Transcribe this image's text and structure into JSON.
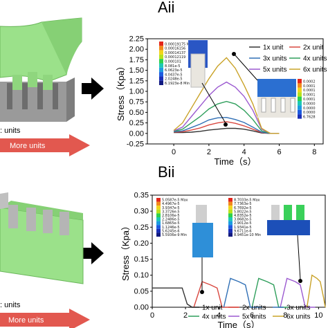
{
  "figure": {
    "panel_a_label": "Aii",
    "panel_b_label": "Bii",
    "arrow_color": "#d9534f",
    "more_units_label": "More units",
    "units_partial_label": ": units"
  },
  "colorbars": {
    "a_left": [
      "0.00019175 Max",
      "0.00016156",
      "0.00014137",
      "0.00012119",
      "0.000101",
      "8.081e-5",
      "6.0623e-5",
      "4.0437e-5",
      "2.0248e-5",
      "6.1923e-8 Min"
    ],
    "a_right": [
      "0.0002",
      "0.0001",
      "0.0001",
      "0.0001",
      "0.0001",
      "0.0000",
      "0.0000",
      "0.0000",
      "6.7628"
    ],
    "b_left": [
      "5.0587e-5 Max",
      "4.4967e-5",
      "3.9347e-5",
      "3.3726e-5",
      "2.8106e-5",
      "2.2486e-5",
      "1.6865e-5",
      "1.1246e-5",
      "5.6245e-6",
      "5.5936e-9 Min"
    ],
    "b_right": [
      "8.7033e-5 Max",
      "7.7363e-5",
      "6.7692e-5",
      "5.8022e-5",
      "4.8352e-5",
      "3.8682e-5",
      "2.9012e-5",
      "1.9341e-5",
      "9.6711e-6",
      "8.9451e-10 Min"
    ]
  },
  "chart_data": [
    {
      "type": "line",
      "xlabel": "Time（s）",
      "ylabel": "Stress（Kpa）",
      "xlim": [
        -1.5,
        8.5
      ],
      "ylim": [
        -0.25,
        2.25
      ],
      "xticks": [
        "0",
        "2",
        "4",
        "6",
        "8"
      ],
      "yticks": [
        "-0.25",
        "0.00",
        "0.25",
        "0.50",
        "0.75",
        "1.00",
        "1.25",
        "1.50",
        "1.75",
        "2.00",
        "2.25"
      ],
      "legend_position": "top-right",
      "series": [
        {
          "name": "1x unit",
          "color": "#333333",
          "x": [
            0,
            0.5,
            1,
            1.5,
            2,
            2.5,
            3,
            3.5,
            4,
            4.5,
            5,
            5.5,
            6
          ],
          "y": [
            0.02,
            0.02,
            0.03,
            0.05,
            0.08,
            0.1,
            0.12,
            0.12,
            0.1,
            0.06,
            0.01,
            0.0,
            0.0
          ]
        },
        {
          "name": "2x unit",
          "color": "#d9473f",
          "x": [
            0,
            0.5,
            1,
            1.5,
            2,
            2.5,
            3,
            3.5,
            4,
            4.5,
            5,
            5.5,
            6
          ],
          "y": [
            0.03,
            0.04,
            0.08,
            0.13,
            0.2,
            0.25,
            0.28,
            0.24,
            0.18,
            0.1,
            0.02,
            0.0,
            0.0
          ]
        },
        {
          "name": "3x units",
          "color": "#2f6fb5",
          "x": [
            0,
            0.5,
            1,
            1.5,
            2,
            2.5,
            3,
            3.5,
            4,
            4.5,
            5,
            5.5,
            6
          ],
          "y": [
            0.04,
            0.06,
            0.14,
            0.22,
            0.32,
            0.37,
            0.38,
            0.33,
            0.26,
            0.15,
            0.03,
            0.0,
            0.0
          ]
        },
        {
          "name": "4x units",
          "color": "#2e9e5b",
          "x": [
            0,
            0.5,
            1,
            1.5,
            2,
            2.5,
            3,
            3.5,
            4,
            4.5,
            5,
            5.5,
            6
          ],
          "y": [
            0.05,
            0.1,
            0.25,
            0.4,
            0.58,
            0.7,
            0.76,
            0.7,
            0.55,
            0.33,
            0.06,
            0.0,
            0.0
          ]
        },
        {
          "name": "5x units",
          "color": "#9b59d0",
          "x": [
            0,
            0.5,
            1,
            1.5,
            2,
            2.5,
            3,
            3.5,
            4,
            4.5,
            5,
            5.5,
            6
          ],
          "y": [
            0.06,
            0.15,
            0.4,
            0.65,
            0.9,
            1.1,
            1.22,
            1.1,
            0.88,
            0.55,
            0.1,
            0.0,
            0.0
          ]
        },
        {
          "name": "6x units",
          "color": "#c9a227",
          "x": [
            0,
            0.5,
            1,
            1.5,
            2,
            2.5,
            3,
            3.5,
            4,
            4.5,
            5,
            5.5,
            6
          ],
          "y": [
            0.07,
            0.25,
            0.6,
            0.95,
            1.3,
            1.6,
            1.8,
            1.55,
            1.15,
            0.7,
            0.12,
            0.0,
            0.0
          ]
        }
      ]
    },
    {
      "type": "line",
      "xlabel": "Time（s）",
      "ylabel": "Stress（Kpa）",
      "xlim": [
        0,
        10.4
      ],
      "ylim": [
        0.0,
        0.35
      ],
      "xticks": [
        "0",
        "2",
        "4",
        "6",
        "8",
        "10"
      ],
      "yticks": [
        "0.00",
        "0.05",
        "0.10",
        "0.15",
        "0.20",
        "0.25",
        "0.30",
        "0.35"
      ],
      "legend_position": "bottom",
      "series": [
        {
          "name": "1x unit",
          "color": "#333333",
          "x": [
            0,
            1,
            1.8,
            2.1,
            2.4,
            3,
            3.6
          ],
          "y": [
            0.06,
            0.06,
            0.06,
            0.01,
            0.0,
            0.0,
            0.0
          ]
        },
        {
          "name": "2x units",
          "color": "#d9473f",
          "x": [
            2.5,
            3,
            3.5,
            3.9,
            4.2,
            4.8,
            5.2
          ],
          "y": [
            0.0,
            0.08,
            0.07,
            0.06,
            0.0,
            0.0,
            0.0
          ]
        },
        {
          "name": "3x units",
          "color": "#2f6fb5",
          "x": [
            4.3,
            4.7,
            5.2,
            5.6,
            5.9,
            6.2,
            6.6
          ],
          "y": [
            0.0,
            0.09,
            0.08,
            0.07,
            0.0,
            0.0,
            0.0
          ]
        },
        {
          "name": "4x units",
          "color": "#2e9e5b",
          "x": [
            6.0,
            6.4,
            6.9,
            7.3,
            7.6,
            7.9,
            8.2
          ],
          "y": [
            0.0,
            0.09,
            0.08,
            0.07,
            0.0,
            0.0,
            0.0
          ]
        },
        {
          "name": "5x units",
          "color": "#9b59d0",
          "x": [
            7.7,
            8.1,
            8.6,
            8.9,
            9.2,
            9.5,
            9.8
          ],
          "y": [
            0.0,
            0.09,
            0.08,
            0.07,
            0.0,
            0.0,
            0.0
          ]
        },
        {
          "name": "6x units",
          "color": "#c9a227",
          "x": [
            9.3,
            9.6,
            9.9,
            10.1,
            10.3,
            10.4
          ],
          "y": [
            0.0,
            0.1,
            0.09,
            0.08,
            0.03,
            0.0
          ]
        }
      ]
    }
  ]
}
